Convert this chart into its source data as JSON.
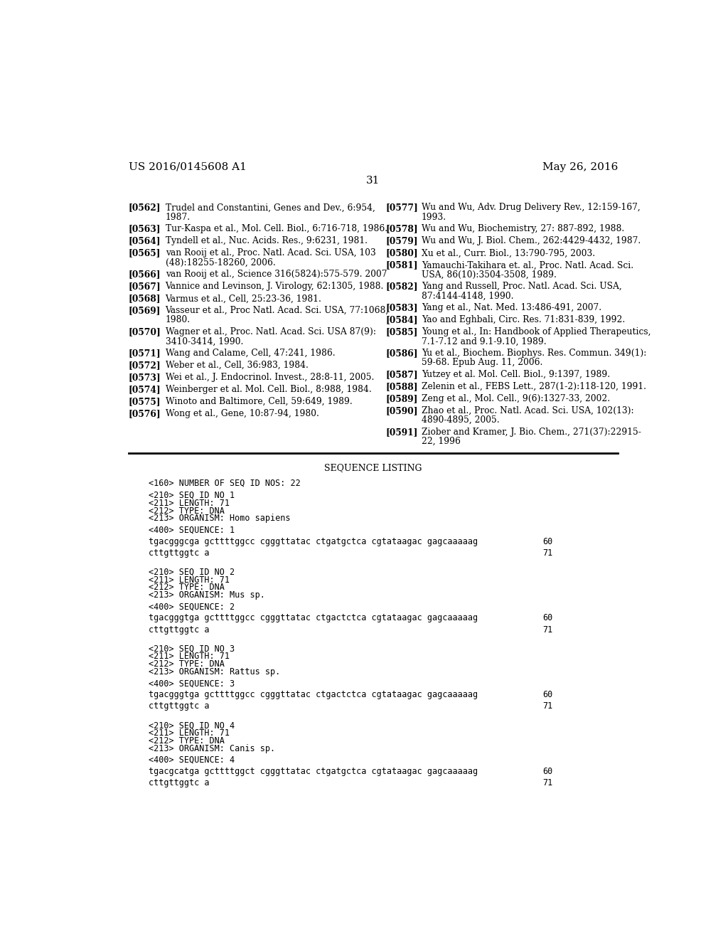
{
  "header_left": "US 2016/0145608 A1",
  "header_right": "May 26, 2016",
  "page_number": "31",
  "background_color": "#ffffff",
  "text_color": "#000000",
  "left_refs": [
    {
      "id": "[0562]",
      "text": "Trudel and Constantini, Genes and Dev., 6:954,\n1987."
    },
    {
      "id": "[0563]",
      "text": "Tur-Kaspa et al., Mol. Cell. Biol., 6:716-718, 1986."
    },
    {
      "id": "[0564]",
      "text": "Tyndell et al., Nuc. Acids. Res., 9:6231, 1981."
    },
    {
      "id": "[0565]",
      "text": "van Rooij et al., Proc. Natl. Acad. Sci. USA, 103\n(48):18255-18260, 2006."
    },
    {
      "id": "[0566]",
      "text": "van Rooij et al., Science 316(5824):575-579. 2007"
    },
    {
      "id": "[0567]",
      "text": "Vannice and Levinson, J. Virology, 62:1305, 1988."
    },
    {
      "id": "[0568]",
      "text": "Varmus et al., Cell, 25:23-36, 1981."
    },
    {
      "id": "[0569]",
      "text": "Vasseur et al., Proc Natl. Acad. Sci. USA, 77:1068,\n1980."
    },
    {
      "id": "[0570]",
      "text": "Wagner et al., Proc. Natl. Acad. Sci. USA 87(9):\n3410-3414, 1990."
    },
    {
      "id": "[0571]",
      "text": "Wang and Calame, Cell, 47:241, 1986."
    },
    {
      "id": "[0572]",
      "text": "Weber et al., Cell, 36:983, 1984."
    },
    {
      "id": "[0573]",
      "text": "Wei et al., J. Endocrinol. Invest., 28:8-11, 2005."
    },
    {
      "id": "[0574]",
      "text": "Weinberger et al. Mol. Cell. Biol., 8:988, 1984."
    },
    {
      "id": "[0575]",
      "text": "Winoto and Baltimore, Cell, 59:649, 1989."
    },
    {
      "id": "[0576]",
      "text": "Wong et al., Gene, 10:87-94, 1980."
    }
  ],
  "right_refs": [
    {
      "id": "[0577]",
      "text": "Wu and Wu, Adv. Drug Delivery Rev., 12:159-167,\n1993."
    },
    {
      "id": "[0578]",
      "text": "Wu and Wu, Biochemistry, 27: 887-892, 1988."
    },
    {
      "id": "[0579]",
      "text": "Wu and Wu, J. Biol. Chem., 262:4429-4432, 1987."
    },
    {
      "id": "[0580]",
      "text": "Xu et al., Curr. Biol., 13:790-795, 2003."
    },
    {
      "id": "[0581]",
      "text": "Yamauchi-Takihara et. al., Proc. Natl. Acad. Sci.\nUSA, 86(10):3504-3508, 1989."
    },
    {
      "id": "[0582]",
      "text": "Yang and Russell, Proc. Natl. Acad. Sci. USA,\n87:4144-4148, 1990."
    },
    {
      "id": "[0583]",
      "text": "Yang et al., Nat. Med. 13:486-491, 2007."
    },
    {
      "id": "[0584]",
      "text": "Yao and Eghbali, Circ. Res. 71:831-839, 1992."
    },
    {
      "id": "[0585]",
      "text": "Young et al., In: Handbook of Applied Therapeutics,\n7.1-7.12 and 9.1-9.10, 1989."
    },
    {
      "id": "[0586]",
      "text": "Yu et al., Biochem. Biophys. Res. Commun. 349(1):\n59-68. Epub Aug. 11, 2006."
    },
    {
      "id": "[0587]",
      "text": "Yutzey et al. Mol. Cell. Biol., 9:1397, 1989."
    },
    {
      "id": "[0588]",
      "text": "Zelenin et al., FEBS Lett., 287(1-2):118-120, 1991."
    },
    {
      "id": "[0589]",
      "text": "Zeng et al., Mol. Cell., 9(6):1327-33, 2002."
    },
    {
      "id": "[0590]",
      "text": "Zhao et al., Proc. Natl. Acad. Sci. USA, 102(13):\n4890-4895, 2005."
    },
    {
      "id": "[0591]",
      "text": "Ziober and Kramer, J. Bio. Chem., 271(37):22915-\n22, 1996"
    }
  ],
  "sequence_listing_title": "SEQUENCE LISTING",
  "sequence_entries": [
    {
      "header_lines": [
        "<160> NUMBER OF SEQ ID NOS: 22",
        "",
        "<210> SEQ ID NO 1",
        "<211> LENGTH: 71",
        "<212> TYPE: DNA",
        "<213> ORGANISM: Homo sapiens"
      ],
      "seq_label": "<400> SEQUENCE: 1",
      "seq_line1": "tgacgggcga gcttttggcc cgggttatac ctgatgctca cgtataagac gagcaaaaag",
      "seq_num1": "60",
      "seq_line2": "cttgttggtc a",
      "seq_num2": "71"
    },
    {
      "header_lines": [
        "<210> SEQ ID NO 2",
        "<211> LENGTH: 71",
        "<212> TYPE: DNA",
        "<213> ORGANISM: Mus sp."
      ],
      "seq_label": "<400> SEQUENCE: 2",
      "seq_line1": "tgacgggtga gcttttggcc cgggttatac ctgactctca cgtataagac gagcaaaaag",
      "seq_num1": "60",
      "seq_line2": "cttgttggtc a",
      "seq_num2": "71"
    },
    {
      "header_lines": [
        "<210> SEQ ID NO 3",
        "<211> LENGTH: 71",
        "<212> TYPE: DNA",
        "<213> ORGANISM: Rattus sp."
      ],
      "seq_label": "<400> SEQUENCE: 3",
      "seq_line1": "tgacgggtga gcttttggcc cgggttatac ctgactctca cgtataagac gagcaaaaag",
      "seq_num1": "60",
      "seq_line2": "cttgttggtc a",
      "seq_num2": "71"
    },
    {
      "header_lines": [
        "<210> SEQ ID NO 4",
        "<211> LENGTH: 71",
        "<212> TYPE: DNA",
        "<213> ORGANISM: Canis sp."
      ],
      "seq_label": "<400> SEQUENCE: 4",
      "seq_line1": "tgacgcatga gcttttggct cgggttatac ctgatgctca cgtataagac gagcaaaaag",
      "seq_num1": "60",
      "seq_line2": "cttgttggtc a",
      "seq_num2": "71"
    }
  ]
}
